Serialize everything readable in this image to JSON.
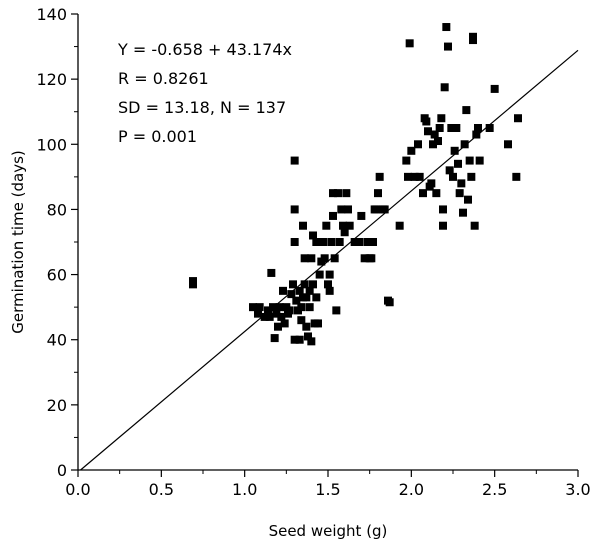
{
  "chart_data": {
    "type": "scatter",
    "title": "",
    "xlabel": "Seed weight (g)",
    "ylabel": "Germination time (days)",
    "xlim": [
      0.0,
      3.0
    ],
    "ylim": [
      0,
      140
    ],
    "x_ticks": [
      0.0,
      0.5,
      1.0,
      1.5,
      2.0,
      2.5,
      3.0
    ],
    "x_tick_labels": [
      "0.0",
      "0.5",
      "1.0",
      "1.5",
      "2.0",
      "2.5",
      "3.0"
    ],
    "y_ticks": [
      0,
      20,
      40,
      60,
      80,
      100,
      120,
      140
    ],
    "y_tick_labels": [
      "0",
      "20",
      "40",
      "60",
      "80",
      "100",
      "120",
      "140"
    ],
    "grid": false,
    "marker": "square",
    "marker_color": "#000000",
    "line_color": "#000000",
    "annotations": [
      "Y = -0.658 + 43.174x",
      "R = 0.8261",
      "SD = 13.18, N = 137",
      "P = 0.001"
    ],
    "fit_line": {
      "intercept": -0.658,
      "slope": 43.174,
      "x_range": [
        0.0,
        3.0
      ]
    },
    "points": [
      [
        0.69,
        58
      ],
      [
        0.69,
        57
      ],
      [
        1.05,
        50
      ],
      [
        1.08,
        48
      ],
      [
        1.12,
        47
      ],
      [
        1.14,
        49
      ],
      [
        1.15,
        47
      ],
      [
        1.16,
        60.5
      ],
      [
        1.17,
        50
      ],
      [
        1.18,
        40.5
      ],
      [
        1.19,
        48
      ],
      [
        1.2,
        44
      ],
      [
        1.21,
        50
      ],
      [
        1.22,
        47
      ],
      [
        1.23,
        55
      ],
      [
        1.24,
        45
      ],
      [
        1.25,
        50
      ],
      [
        1.26,
        48
      ],
      [
        1.28,
        54
      ],
      [
        1.29,
        57
      ],
      [
        1.3,
        95
      ],
      [
        1.3,
        80
      ],
      [
        1.3,
        70
      ],
      [
        1.3,
        40
      ],
      [
        1.31,
        52
      ],
      [
        1.32,
        49
      ],
      [
        1.33,
        55
      ],
      [
        1.33,
        40
      ],
      [
        1.34,
        50
      ],
      [
        1.34,
        46
      ],
      [
        1.35,
        53
      ],
      [
        1.35,
        75
      ],
      [
        1.36,
        57
      ],
      [
        1.36,
        65
      ],
      [
        1.37,
        53
      ],
      [
        1.37,
        44
      ],
      [
        1.38,
        41
      ],
      [
        1.39,
        50
      ],
      [
        1.39,
        55
      ],
      [
        1.4,
        39.5
      ],
      [
        1.4,
        65
      ],
      [
        1.41,
        72
      ],
      [
        1.41,
        57
      ],
      [
        1.42,
        45
      ],
      [
        1.43,
        53
      ],
      [
        1.43,
        70
      ],
      [
        1.44,
        45
      ],
      [
        1.45,
        60
      ],
      [
        1.47,
        70
      ],
      [
        1.48,
        65
      ],
      [
        1.49,
        75
      ],
      [
        1.5,
        57
      ],
      [
        1.51,
        55
      ],
      [
        1.51,
        60
      ],
      [
        1.52,
        70
      ],
      [
        1.53,
        85
      ],
      [
        1.53,
        78
      ],
      [
        1.54,
        65
      ],
      [
        1.55,
        49
      ],
      [
        1.56,
        85
      ],
      [
        1.57,
        70
      ],
      [
        1.58,
        80
      ],
      [
        1.59,
        75
      ],
      [
        1.6,
        73
      ],
      [
        1.61,
        85
      ],
      [
        1.62,
        80
      ],
      [
        1.63,
        75
      ],
      [
        1.69,
        70
      ],
      [
        1.7,
        78
      ],
      [
        1.72,
        65
      ],
      [
        1.74,
        70
      ],
      [
        1.75,
        65
      ],
      [
        1.76,
        65
      ],
      [
        1.77,
        70
      ],
      [
        1.78,
        80
      ],
      [
        1.79,
        80
      ],
      [
        1.8,
        85
      ],
      [
        1.81,
        90
      ],
      [
        1.83,
        80
      ],
      [
        1.84,
        80
      ],
      [
        1.86,
        52
      ],
      [
        1.87,
        51.5
      ],
      [
        1.93,
        75
      ],
      [
        1.97,
        95
      ],
      [
        1.98,
        90
      ],
      [
        1.99,
        131
      ],
      [
        2.02,
        90
      ],
      [
        2.04,
        100
      ],
      [
        2.05,
        90
      ],
      [
        2.07,
        85
      ],
      [
        2.08,
        108
      ],
      [
        2.09,
        107
      ],
      [
        2.1,
        104
      ],
      [
        2.12,
        88
      ],
      [
        2.13,
        100
      ],
      [
        2.14,
        103
      ],
      [
        2.15,
        85
      ],
      [
        2.16,
        101
      ],
      [
        2.17,
        105
      ],
      [
        2.18,
        108
      ],
      [
        2.19,
        80
      ],
      [
        2.19,
        75
      ],
      [
        2.2,
        117.5
      ],
      [
        2.21,
        136
      ],
      [
        2.22,
        130
      ],
      [
        2.23,
        92
      ],
      [
        2.24,
        105
      ],
      [
        2.25,
        90
      ],
      [
        2.26,
        98
      ],
      [
        2.27,
        105
      ],
      [
        2.29,
        85
      ],
      [
        2.3,
        88
      ],
      [
        2.31,
        79
      ],
      [
        2.32,
        100
      ],
      [
        2.33,
        110.5
      ],
      [
        2.34,
        83
      ],
      [
        2.35,
        95
      ],
      [
        2.36,
        90
      ],
      [
        2.37,
        133
      ],
      [
        2.37,
        132
      ],
      [
        2.38,
        75
      ],
      [
        2.39,
        103
      ],
      [
        2.4,
        105
      ],
      [
        2.41,
        95
      ],
      [
        2.47,
        105
      ],
      [
        2.5,
        117
      ],
      [
        2.58,
        100
      ],
      [
        2.63,
        90
      ],
      [
        2.64,
        108
      ],
      [
        1.09,
        50
      ],
      [
        1.27,
        49
      ],
      [
        1.46,
        64
      ],
      [
        1.66,
        70
      ],
      [
        2.0,
        98
      ],
      [
        2.11,
        87
      ],
      [
        2.28,
        94
      ]
    ]
  }
}
